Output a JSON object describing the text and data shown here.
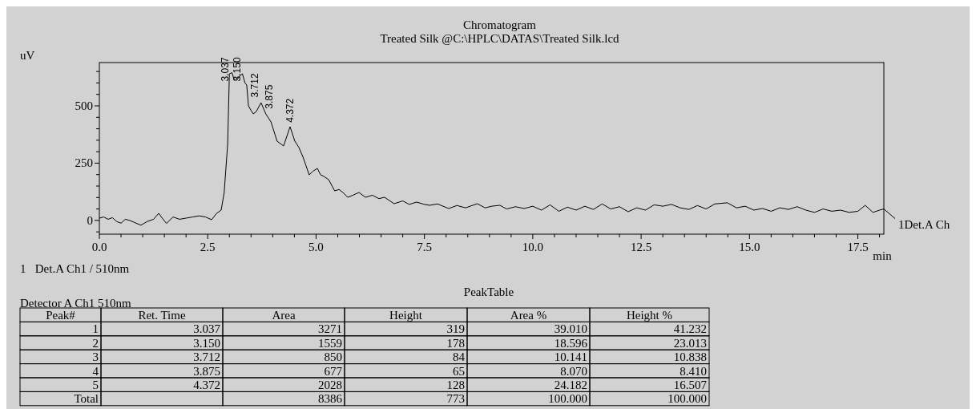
{
  "chart_data": {
    "type": "line",
    "title": "Chromatogram",
    "subtitle": "Treated Silk @C:\\HPLC\\DATAS\\Treated Silk.lcd",
    "xlabel": "min",
    "ylabel": "uV",
    "xlim": [
      0,
      18.1
    ],
    "ylim": [
      -60,
      689
    ],
    "xticks": [
      {
        "value": 0,
        "label": "0.0"
      },
      {
        "value": 0.5,
        "label": null
      },
      {
        "value": 1,
        "label": null
      },
      {
        "value": 1.5,
        "label": null
      },
      {
        "value": 2,
        "label": null
      },
      {
        "value": 2.5,
        "label": "2.5"
      },
      {
        "value": 3,
        "label": null
      },
      {
        "value": 3.5,
        "label": null
      },
      {
        "value": 4,
        "label": null
      },
      {
        "value": 4.5,
        "label": null
      },
      {
        "value": 5,
        "label": "5.0"
      },
      {
        "value": 5.5,
        "label": null
      },
      {
        "value": 6,
        "label": null
      },
      {
        "value": 6.5,
        "label": null
      },
      {
        "value": 7,
        "label": null
      },
      {
        "value": 7.5,
        "label": "7.5"
      },
      {
        "value": 8,
        "label": null
      },
      {
        "value": 8.5,
        "label": null
      },
      {
        "value": 9,
        "label": null
      },
      {
        "value": 9.5,
        "label": null
      },
      {
        "value": 10,
        "label": "10.0"
      },
      {
        "value": 10.5,
        "label": null
      },
      {
        "value": 11,
        "label": null
      },
      {
        "value": 11.5,
        "label": null
      },
      {
        "value": 12,
        "label": null
      },
      {
        "value": 12.5,
        "label": "12.5"
      },
      {
        "value": 13,
        "label": null
      },
      {
        "value": 13.5,
        "label": null
      },
      {
        "value": 14,
        "label": null
      },
      {
        "value": 14.5,
        "label": null
      },
      {
        "value": 15,
        "label": "15.0"
      },
      {
        "value": 15.5,
        "label": null
      },
      {
        "value": 16,
        "label": null
      },
      {
        "value": 16.5,
        "label": null
      },
      {
        "value": 17,
        "label": null
      },
      {
        "value": 17.5,
        "label": "17.5"
      },
      {
        "value": 18,
        "label": null
      }
    ],
    "yticks": [
      {
        "value": -50,
        "label": null
      },
      0,
      {
        "value": 50,
        "label": null
      },
      {
        "value": 100,
        "label": null
      },
      {
        "value": 150,
        "label": null
      },
      {
        "value": 200,
        "label": null
      },
      250,
      {
        "value": 300,
        "label": null
      },
      {
        "value": 350,
        "label": null
      },
      {
        "value": 400,
        "label": null
      },
      {
        "value": 450,
        "label": null
      },
      500,
      {
        "value": 550,
        "label": null
      },
      {
        "value": 600,
        "label": null
      },
      {
        "value": 650,
        "label": null
      }
    ],
    "series": [
      {
        "name": "1Det.A Ch",
        "color": "#000000",
        "x": [
          0,
          0.1,
          0.2,
          0.3,
          0.4,
          0.5,
          0.6,
          0.7,
          0.8,
          0.96,
          1.1,
          1.25,
          1.37,
          1.45,
          1.55,
          1.7,
          1.85,
          2.0,
          2.15,
          2.3,
          2.45,
          2.59,
          2.7,
          2.81,
          2.88,
          2.96,
          3.0,
          3.06,
          3.1,
          3.16,
          3.24,
          3.3,
          3.36,
          3.4,
          3.44,
          3.5,
          3.55,
          3.62,
          3.73,
          3.84,
          3.96,
          4.1,
          4.25,
          4.4,
          4.51,
          4.6,
          4.7,
          4.84,
          4.93,
          5.03,
          5.1,
          5.18,
          5.29,
          5.43,
          5.53,
          5.62,
          5.73,
          5.85,
          5.99,
          6.14,
          6.3,
          6.45,
          6.58,
          6.8,
          7.0,
          7.15,
          7.32,
          7.5,
          7.62,
          7.8,
          8.06,
          8.25,
          8.45,
          8.72,
          8.9,
          9.05,
          9.24,
          9.4,
          9.6,
          9.8,
          10.0,
          10.2,
          10.4,
          10.6,
          10.8,
          11.0,
          11.2,
          11.4,
          11.6,
          11.8,
          12.0,
          12.2,
          12.4,
          12.6,
          12.8,
          13.0,
          13.2,
          13.4,
          13.6,
          13.8,
          14.0,
          14.2,
          14.49,
          14.7,
          14.9,
          15.1,
          15.3,
          15.5,
          15.7,
          15.9,
          16.1,
          16.3,
          16.5,
          16.7,
          16.9,
          17.1,
          17.3,
          17.5,
          17.67,
          17.85,
          18.0,
          18.1
        ],
        "values": [
          10,
          15,
          5,
          12,
          -5,
          -12,
          5,
          0,
          -8,
          -21,
          -5,
          5,
          31,
          10,
          -13,
          15,
          5,
          10,
          15,
          20,
          15,
          3,
          30,
          45,
          122,
          332,
          640,
          645,
          620,
          610,
          630,
          640,
          600,
          591,
          500,
          480,
          465,
          475,
          514,
          465,
          430,
          346,
          325,
          409,
          346,
          320,
          276,
          199,
          215,
          227,
          200,
          192,
          178,
          129,
          135,
          122,
          101,
          110,
          122,
          101,
          110,
          95,
          101,
          73,
          85,
          70,
          80,
          70,
          66,
          72,
          52,
          65,
          55,
          73,
          55,
          62,
          66,
          50,
          60,
          52,
          62,
          45,
          68,
          40,
          58,
          45,
          62,
          48,
          72,
          50,
          60,
          38,
          55,
          45,
          68,
          62,
          70,
          55,
          48,
          65,
          50,
          72,
          77,
          55,
          62,
          45,
          52,
          40,
          55,
          48,
          60,
          45,
          35,
          50,
          40,
          45,
          35,
          40,
          66,
          35,
          45,
          50
        ]
      }
    ],
    "annotations": [
      {
        "text": "3.037",
        "x": 3.037,
        "y": 600
      },
      {
        "text": "3.150",
        "x": 3.15,
        "y": 600
      },
      {
        "text": "3.712",
        "x": 3.712,
        "y": 530
      },
      {
        "text": "3.875",
        "x": 3.875,
        "y": 480
      },
      {
        "text": "4.372",
        "x": 4.372,
        "y": 420
      },
      "1   Det.A Ch1 / 510nm",
      "PeakTable",
      "Detector A Ch1 510nm",
      "Peak#",
      "Ret. Time",
      "Area",
      "Height",
      "Area %",
      "Height %",
      "1",
      "3.037",
      "3271",
      "319",
      "39.010",
      "41.232",
      "2",
      "3.150",
      "1559",
      "178",
      "18.596",
      "23.013",
      "3",
      "3.712",
      "850",
      "84",
      "10.141",
      "10.838",
      "4",
      "3.875",
      "677",
      "65",
      "8.070",
      "8.410",
      "5",
      "4.372",
      "2028",
      "128",
      "24.182",
      "16.507",
      "Total",
      "8386",
      "773",
      "100.000",
      "100.000"
    ]
  }
}
